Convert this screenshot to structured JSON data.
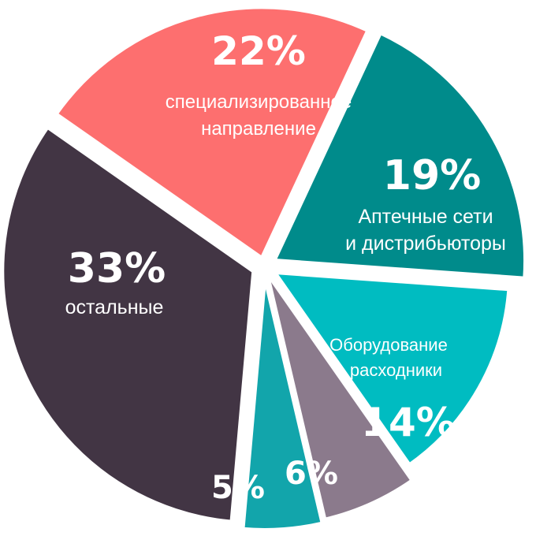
{
  "chart_data": {
    "type": "pie",
    "slices": [
      {
        "value": 22,
        "pct_label": "22%",
        "label_lines": [
          "специализированное",
          "направление"
        ],
        "color": "#FD6F6F"
      },
      {
        "value": 19,
        "pct_label": "19%",
        "label_lines": [
          "Аптечные сети",
          "и дистрибьюторы"
        ],
        "color": "#008B8B"
      },
      {
        "value": 14,
        "pct_label": "14%",
        "label_lines": [
          "Оборудование",
          "+ расходники"
        ],
        "color": "#00BCC1"
      },
      {
        "value": 6,
        "pct_label": "6%",
        "label_lines": [],
        "color": "#8B7A8C"
      },
      {
        "value": 5,
        "pct_label": "5%",
        "label_lines": [],
        "color": "#12A5AB"
      },
      {
        "value": 33,
        "pct_label": "33%",
        "label_lines": [
          "остальные"
        ],
        "color": "#423544"
      }
    ]
  }
}
